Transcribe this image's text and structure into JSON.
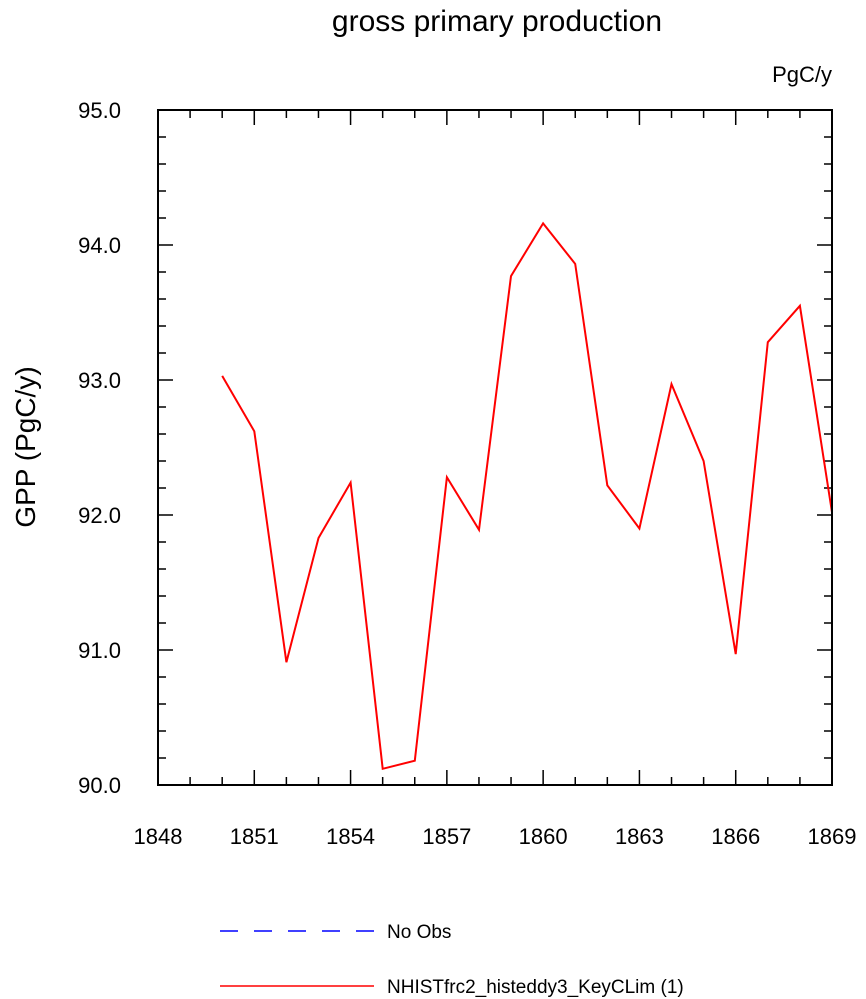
{
  "chart_data": {
    "type": "line",
    "title": "gross primary production",
    "units_label": "PgC/y",
    "xlabel": "",
    "ylabel": "GPP  (PgC/y)",
    "xlim": [
      1848,
      1869
    ],
    "ylim": [
      90.0,
      95.0
    ],
    "x_ticks": [
      "1848",
      "1851",
      "1854",
      "1857",
      "1860",
      "1863",
      "1866",
      "1869"
    ],
    "y_ticks": [
      "90.0",
      "91.0",
      "92.0",
      "93.0",
      "94.0",
      "95.0"
    ],
    "series": [
      {
        "name": "NHISTfrc2_histeddy3_KeyCLim (1)",
        "color": "#ff0000",
        "dash": "solid",
        "x": [
          1850,
          1851,
          1852,
          1853,
          1854,
          1855,
          1856,
          1857,
          1858,
          1859,
          1860,
          1861,
          1862,
          1863,
          1864,
          1865,
          1866,
          1867,
          1868,
          1869
        ],
        "values": [
          93.03,
          92.62,
          90.91,
          91.83,
          92.24,
          90.12,
          90.18,
          92.28,
          91.89,
          93.77,
          94.16,
          93.86,
          92.22,
          91.9,
          92.97,
          92.4,
          90.97,
          93.28,
          93.55,
          92.02
        ]
      }
    ],
    "legend": [
      {
        "label": "No Obs",
        "color": "#0000ff",
        "dash": "dashed"
      },
      {
        "label": "NHISTfrc2_histeddy3_KeyCLim (1)",
        "color": "#ff0000",
        "dash": "solid"
      }
    ],
    "legend_placement": "bottom",
    "grid": false
  }
}
